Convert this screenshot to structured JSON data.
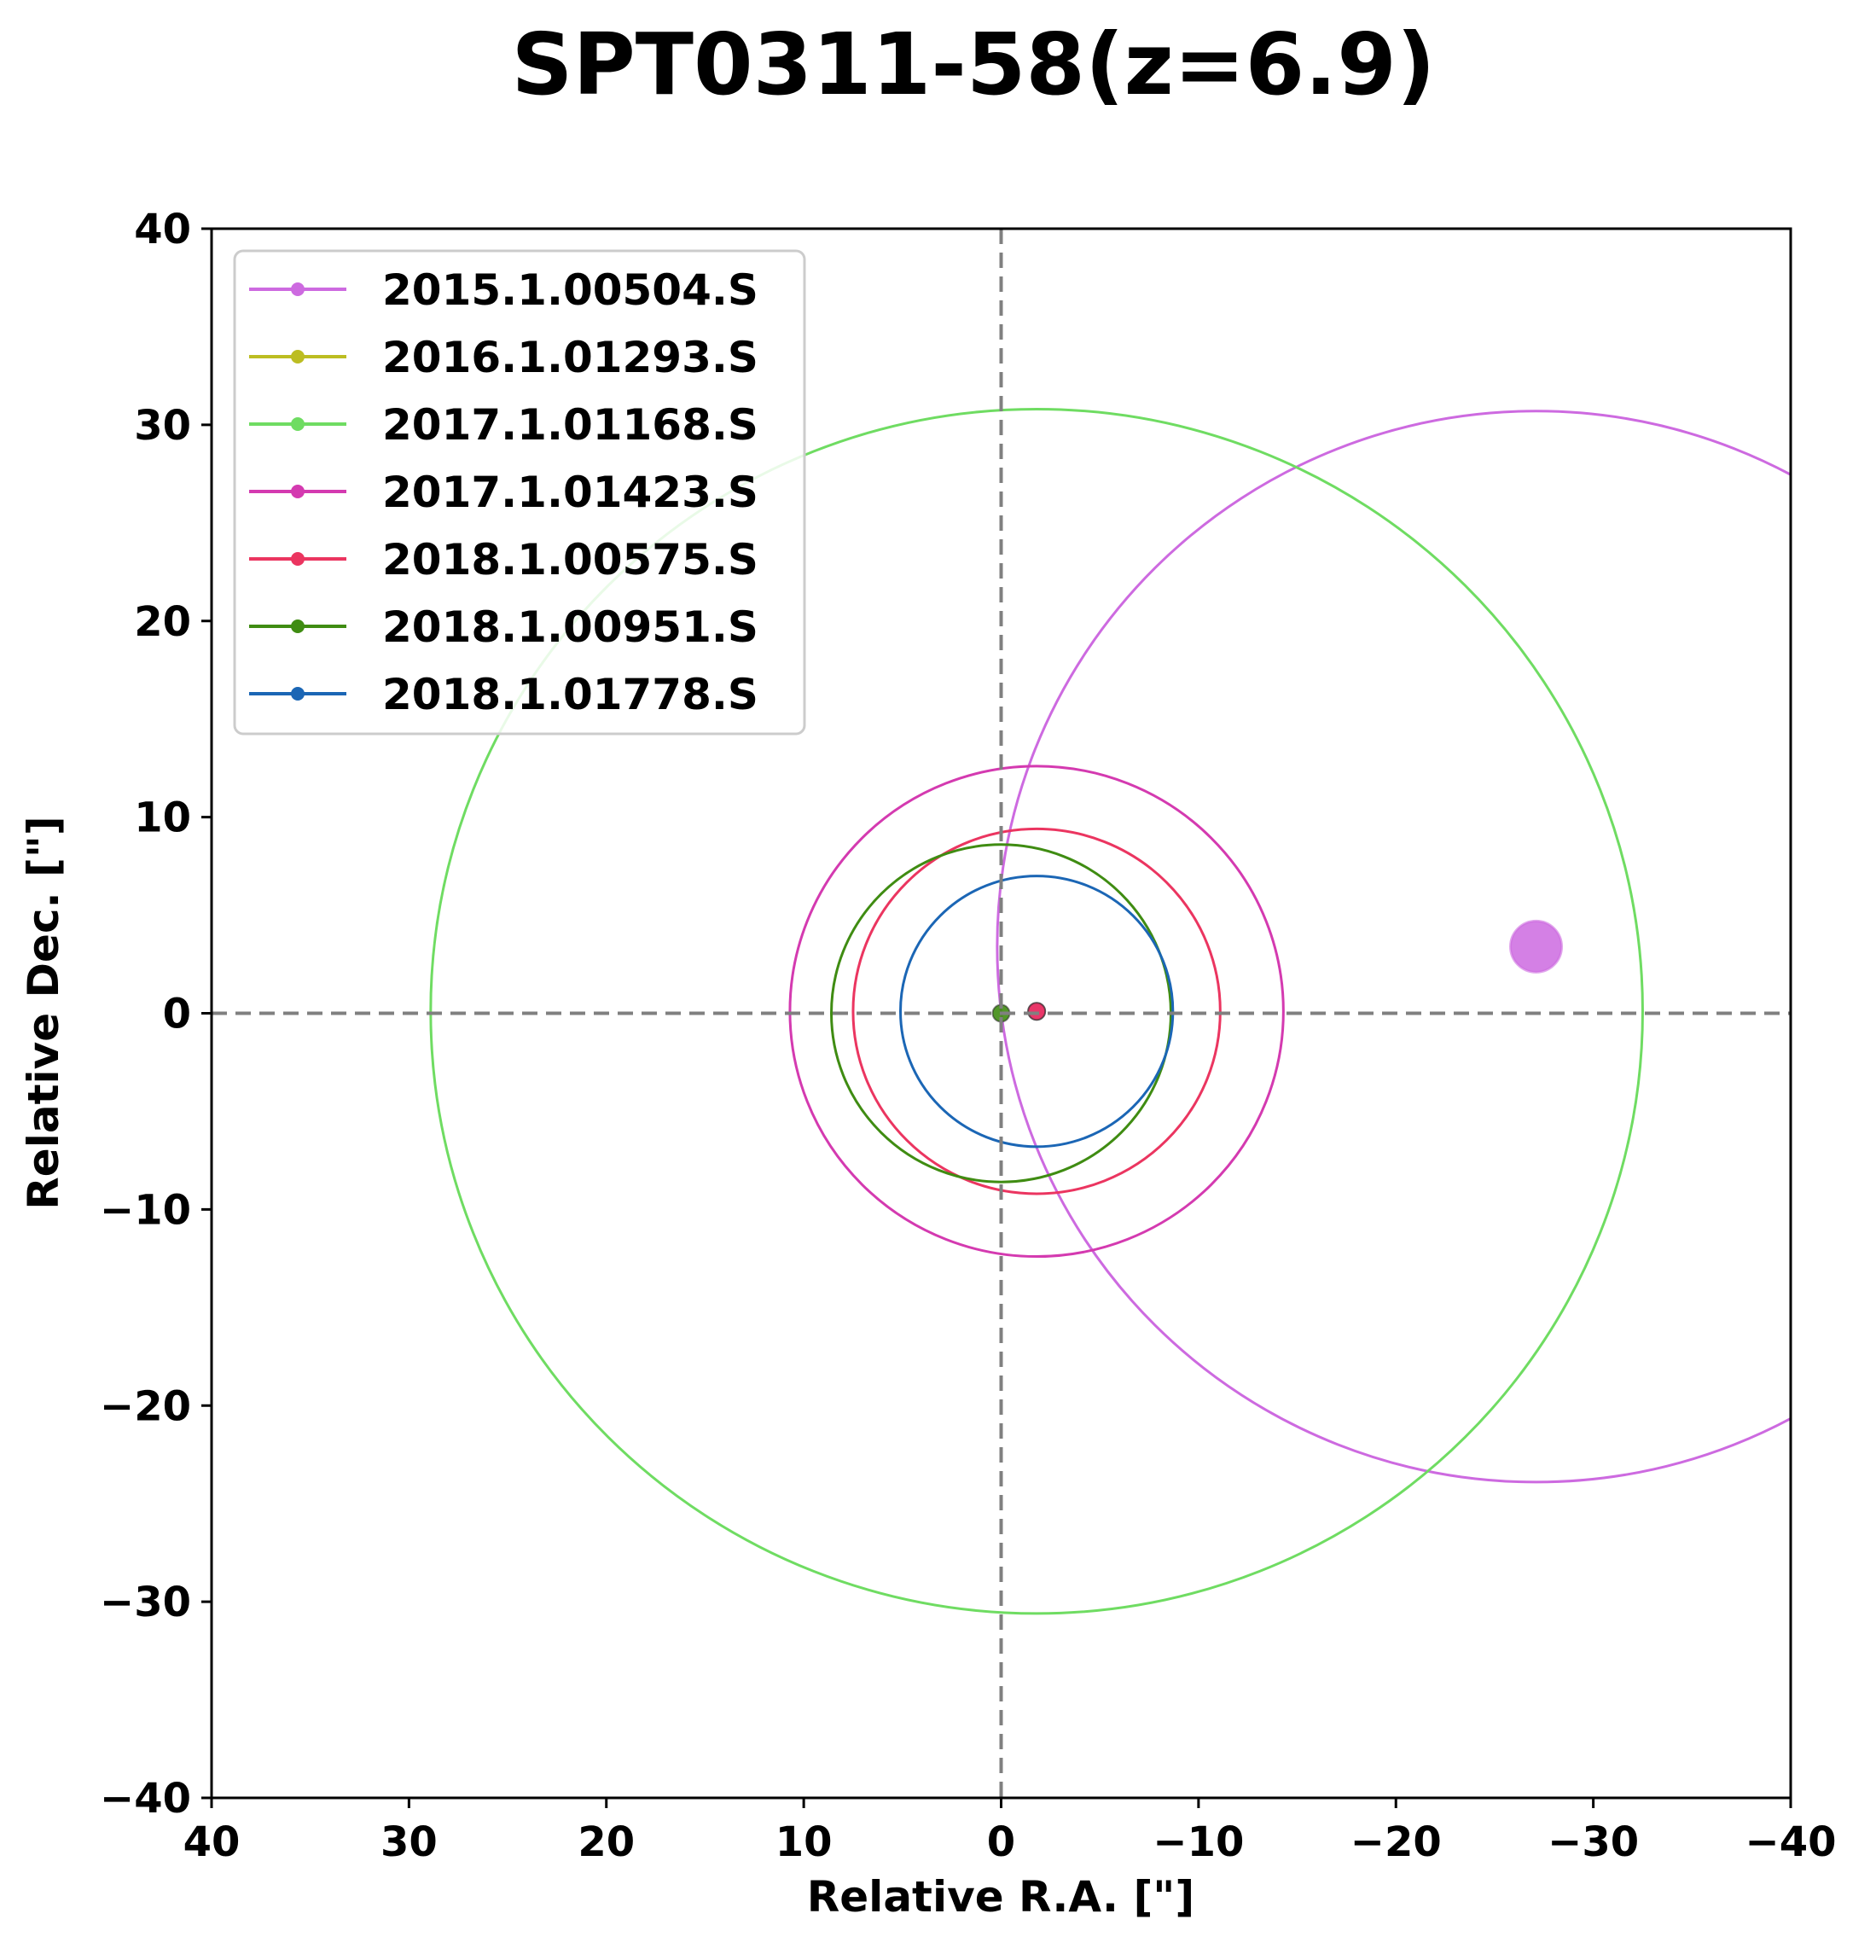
{
  "chart_data": {
    "type": "scatter",
    "title": "SPT0311-58(z=6.9)",
    "xlabel": "Relative R.A. [\"]",
    "ylabel": "Relative Dec. [\"]",
    "xlim": [
      40,
      -40
    ],
    "ylim": [
      -40,
      40
    ],
    "x_ticks": [
      40,
      30,
      20,
      10,
      0,
      -10,
      -20,
      -30,
      -40
    ],
    "x_tick_labels": [
      "40",
      "30",
      "20",
      "10",
      "0",
      "−10",
      "−20",
      "−30",
      "−40"
    ],
    "y_ticks": [
      40,
      30,
      20,
      10,
      0,
      -10,
      -20,
      -30,
      -40
    ],
    "y_tick_labels": [
      "40",
      "30",
      "20",
      "10",
      "0",
      "−10",
      "−20",
      "−30",
      "−40"
    ],
    "reference_lines": {
      "x": 0,
      "y": 0,
      "style": "dashed",
      "color": "#808080"
    },
    "legend": {
      "location": "upper-left"
    },
    "grid": false,
    "series": [
      {
        "name": "2015.1.00504.S",
        "color": "#cd6ae0",
        "circle": {
          "x": -27.1,
          "y": 3.4,
          "r": 27.3
        },
        "marker": {
          "x": -27.1,
          "y": 3.4,
          "size": "large"
        }
      },
      {
        "name": "2016.1.01293.S",
        "color": "#bcbd22",
        "circle": null,
        "marker": null
      },
      {
        "name": "2017.1.01168.S",
        "color": "#6fdc62",
        "circle": {
          "x": -1.8,
          "y": 0.1,
          "r": 30.7
        },
        "marker": null
      },
      {
        "name": "2017.1.01423.S",
        "color": "#d43ab0",
        "circle": {
          "x": -1.8,
          "y": 0.1,
          "r": 12.5
        },
        "marker": {
          "x": -1.8,
          "y": 0.1,
          "size": "small"
        }
      },
      {
        "name": "2018.1.00575.S",
        "color": "#eb3560",
        "circle": {
          "x": -1.8,
          "y": 0.1,
          "r": 9.3
        },
        "marker": {
          "x": -1.8,
          "y": 0.1,
          "size": "small"
        }
      },
      {
        "name": "2018.1.00951.S",
        "color": "#3f8c12",
        "circle": {
          "x": 0.0,
          "y": 0.0,
          "r": 8.6
        },
        "marker": {
          "x": 0.0,
          "y": 0.0,
          "size": "small"
        }
      },
      {
        "name": "2018.1.01778.S",
        "color": "#1b66b5",
        "circle": {
          "x": -1.8,
          "y": 0.1,
          "r": 6.9
        },
        "marker": null
      }
    ]
  }
}
